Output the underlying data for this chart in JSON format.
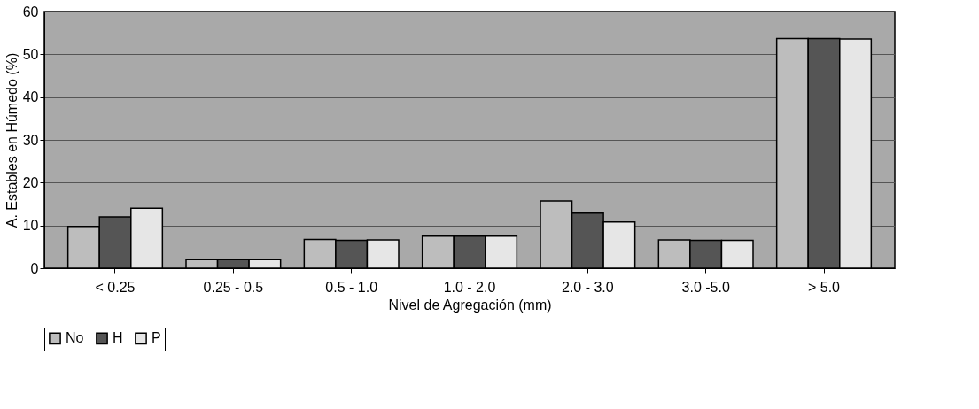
{
  "chart_data": {
    "type": "bar",
    "xlabel": "Nivel de Agregación (mm)",
    "ylabel": "A. Estables en Húmedo (%)",
    "categories": [
      "< 0.25",
      "0.25 - 0.5",
      "0.5 - 1.0",
      "1.0 - 2.0",
      "2.0 - 3.0",
      "3.0 -5.0",
      "> 5.0"
    ],
    "series": [
      {
        "name": "No",
        "color": "#bdbdbd",
        "values": [
          9.8,
          2,
          6.7,
          7.5,
          15.7,
          6.6,
          53.7
        ]
      },
      {
        "name": "H",
        "color": "#555555",
        "values": [
          12,
          2,
          6.5,
          7.5,
          12.9,
          6.5,
          53.7
        ]
      },
      {
        "name": "P",
        "color": "#e6e6e6",
        "values": [
          14,
          2,
          6.6,
          7.5,
          10.8,
          6.5,
          53.6
        ]
      }
    ],
    "ylim": [
      0,
      60
    ],
    "yticks": [
      0,
      10,
      20,
      30,
      40,
      50,
      60
    ],
    "grid": "y",
    "legend": "bottom"
  }
}
